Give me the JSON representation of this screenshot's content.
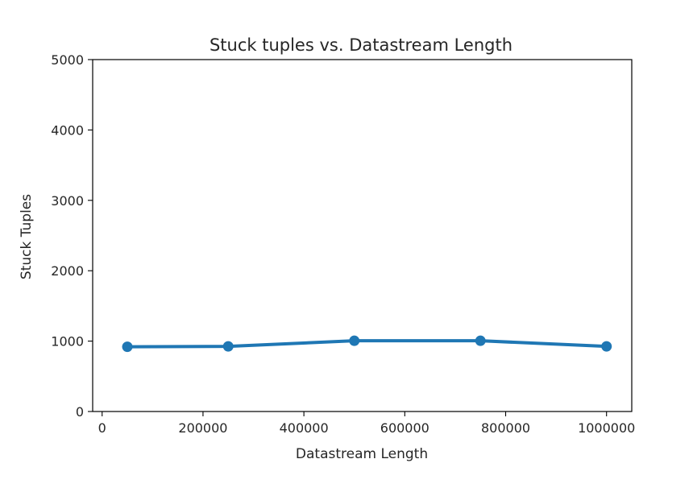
{
  "chart_data": {
    "type": "line",
    "title": "Stuck tuples vs. Datastream Length",
    "xlabel": "Datastream Length",
    "ylabel": "Stuck Tuples",
    "xlim": [
      -18750,
      1050000
    ],
    "ylim": [
      0,
      5000
    ],
    "xticks": [
      0,
      200000,
      400000,
      600000,
      800000,
      1000000
    ],
    "xtick_labels": [
      "0",
      "200000",
      "400000",
      "600000",
      "800000",
      "1000000"
    ],
    "yticks": [
      0,
      1000,
      2000,
      3000,
      4000,
      5000
    ],
    "ytick_labels": [
      "0",
      "1000",
      "2000",
      "3000",
      "4000",
      "5000"
    ],
    "grid": false,
    "legend": "none",
    "series": [
      {
        "color": "#1f77b4",
        "marker": "circle",
        "points": [
          {
            "x": 50000,
            "y": 920
          },
          {
            "x": 250000,
            "y": 925
          },
          {
            "x": 500000,
            "y": 1005
          },
          {
            "x": 750000,
            "y": 1005
          },
          {
            "x": 1000000,
            "y": 925
          }
        ]
      }
    ]
  }
}
